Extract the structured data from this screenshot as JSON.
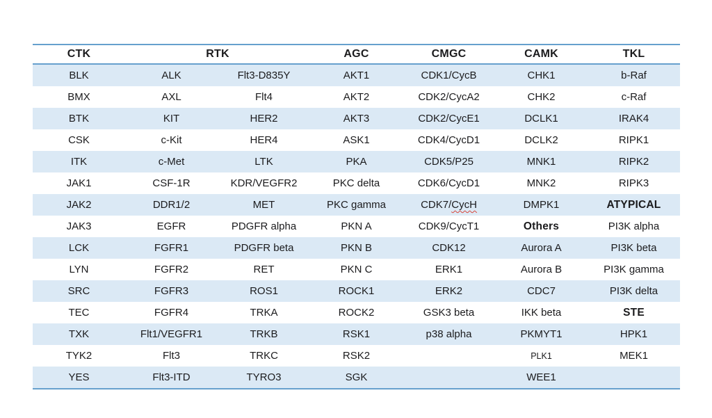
{
  "page": {
    "background_color": "#ffffff",
    "description": "Document screenshot of a kinase family table with banded rows"
  },
  "colors": {
    "row_band": "#dbe9f5",
    "table_border": "#66a0cd",
    "text": "#1b1b1d",
    "spellcheck_underline": "#d8453a"
  },
  "table": {
    "header": [
      {
        "label": "CTK",
        "span": 1
      },
      {
        "label": "RTK",
        "span": 2
      },
      {
        "label": "AGC",
        "span": 1
      },
      {
        "label": "CMGC",
        "span": 1
      },
      {
        "label": "CAMK",
        "span": 1
      },
      {
        "label": "TKL",
        "span": 1
      }
    ],
    "rows": [
      [
        "BLK",
        "ALK",
        "Flt3-D835Y",
        "AKT1",
        "CDK1/CycB",
        "CHK1",
        "b-Raf"
      ],
      [
        "BMX",
        "AXL",
        "Flt4",
        "AKT2",
        "CDK2/CycA2",
        "CHK2",
        "c-Raf"
      ],
      [
        "BTK",
        "KIT",
        "HER2",
        "AKT3",
        "CDK2/CycE1",
        "DCLK1",
        "IRAK4"
      ],
      [
        "CSK",
        "c-Kit",
        "HER4",
        "ASK1",
        "CDK4/CycD1",
        "DCLK2",
        "RIPK1"
      ],
      [
        "ITK",
        "c-Met",
        "LTK",
        "PKA",
        "CDK5/P25",
        "MNK1",
        "RIPK2"
      ],
      [
        "JAK1",
        "CSF-1R",
        "KDR/VEGFR2",
        "PKC delta",
        "CDK6/CycD1",
        "MNK2",
        "RIPK3"
      ],
      [
        "JAK2",
        "DDR1/2",
        "MET",
        "PKC gamma",
        {
          "text": "CDK7/CycH",
          "misspelled_part": "CycH"
        },
        "DMPK1",
        {
          "text": "ATYPICAL",
          "bold": true
        }
      ],
      [
        "JAK3",
        "EGFR",
        "PDGFR alpha",
        "PKN A",
        "CDK9/CycT1",
        {
          "text": "Others",
          "bold": true
        },
        "PI3K alpha"
      ],
      [
        "LCK",
        "FGFR1",
        "PDGFR beta",
        "PKN B",
        "CDK12",
        "Aurora A",
        "PI3K beta"
      ],
      [
        "LYN",
        "FGFR2",
        "RET",
        "PKN C",
        "ERK1",
        "Aurora B",
        "PI3K gamma"
      ],
      [
        "SRC",
        "FGFR3",
        "ROS1",
        "ROCK1",
        "ERK2",
        "CDC7",
        "PI3K delta"
      ],
      [
        "TEC",
        "FGFR4",
        "TRKA",
        "ROCK2",
        "GSK3 beta",
        "IKK beta",
        {
          "text": "STE",
          "bold": true
        }
      ],
      [
        "TXK",
        "Flt1/VEGFR1",
        "TRKB",
        "RSK1",
        "p38 alpha",
        "PKMYT1",
        "HPK1"
      ],
      [
        "TYK2",
        "Flt3",
        "TRKC",
        "RSK2",
        "",
        {
          "text": "PLK1",
          "small": true
        },
        "MEK1"
      ],
      [
        "YES",
        "Flt3-ITD",
        "TYRO3",
        "SGK",
        "",
        "WEE1",
        ""
      ]
    ]
  }
}
